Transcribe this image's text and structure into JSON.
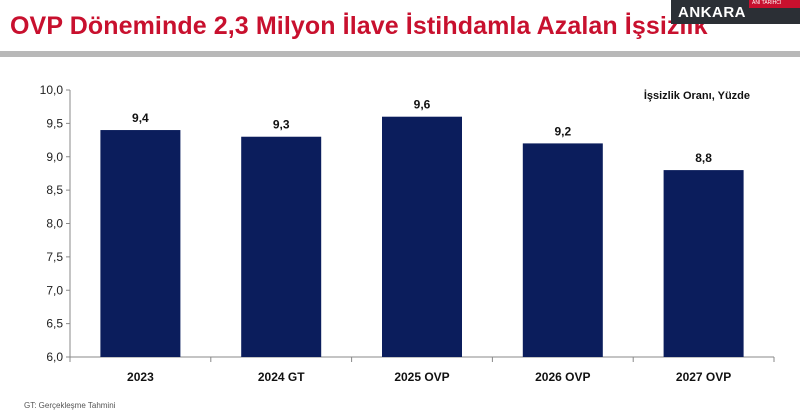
{
  "header": {
    "title": "OVP Döneminde 2,3 Milyon İlave İstihdamla Azalan İşsizlik",
    "badge_label": "ANKARA",
    "badge_small_text": "ANI TARIHCI"
  },
  "footnote": "GT: Gerçekleşme Tahmini",
  "colors": {
    "bar": "#0b1d5c",
    "title": "#c8102e",
    "axis": "#888888"
  },
  "chart_data": {
    "type": "bar",
    "categories": [
      "2023",
      "2024 GT",
      "2025 OVP",
      "2026 OVP",
      "2027 OVP"
    ],
    "values": [
      9.4,
      9.3,
      9.6,
      9.2,
      8.8
    ],
    "value_labels": [
      "9,4",
      "9,3",
      "9,6",
      "9,2",
      "8,8"
    ],
    "title": "OVP Döneminde 2,3 Milyon İlave İstihdamla Azalan İşsizlik",
    "annotation": "İşsizlik Oranı, Yüzde",
    "ylim": [
      6.0,
      10.0
    ],
    "yticks": [
      6.0,
      6.5,
      7.0,
      7.5,
      8.0,
      8.5,
      9.0,
      9.5,
      10.0
    ],
    "ytick_labels": [
      "6,0",
      "6,5",
      "7,0",
      "7,5",
      "8,0",
      "8,5",
      "9,0",
      "9,5",
      "10,0"
    ],
    "grid": false,
    "legend": "none"
  }
}
